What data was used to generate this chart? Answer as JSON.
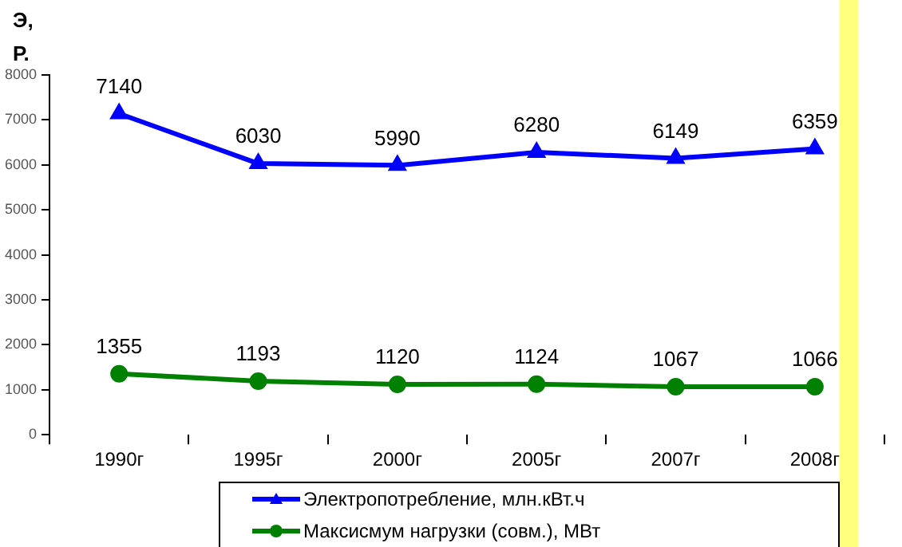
{
  "chart_data": {
    "type": "line",
    "ylabel": "Э, Р.",
    "categories": [
      "1990г",
      "1995г",
      "2000г",
      "2005г",
      "2007г",
      "2008г"
    ],
    "series": [
      {
        "name": "Электропотребление, млн.кВт.ч",
        "color": "#0000ff",
        "marker": "triangle",
        "values": [
          7140,
          6030,
          5990,
          6280,
          6149,
          6359
        ]
      },
      {
        "name": "Максисмум нагрузки (совм.), МВт",
        "color": "#008000",
        "marker": "circle",
        "values": [
          1355,
          1193,
          1120,
          1124,
          1067,
          1066
        ]
      }
    ],
    "ylim": [
      0,
      8000
    ],
    "yticks": [
      0,
      1000,
      2000,
      3000,
      4000,
      5000,
      6000,
      7000,
      8000
    ],
    "bands": [
      {
        "axis": "x",
        "from": "2008г",
        "to": "2008г",
        "color": "#ffff80"
      }
    ],
    "data_labels": true,
    "legend": "bottom",
    "grid": false
  }
}
